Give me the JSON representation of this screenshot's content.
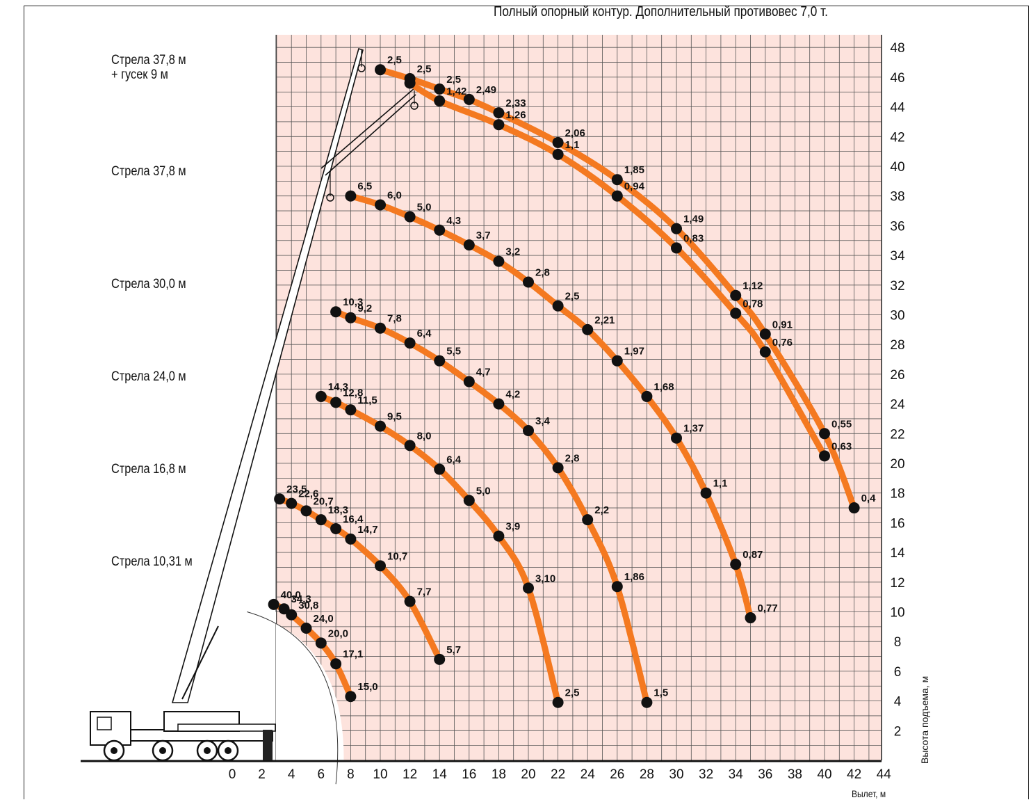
{
  "title": "Полный опорный контур. Дополнительный противовес 7,0 т.",
  "chart_data": {
    "type": "line",
    "title": "Полный опорный контур. Дополнительный противовес 7,0 т.",
    "xlabel": "Вылет, м",
    "ylabel": "Высота подъема, м",
    "xlim": [
      0,
      44
    ],
    "ylim": [
      0,
      48
    ],
    "x_ticks": [
      "0",
      "2",
      "4",
      "6",
      "8",
      "10",
      "12",
      "14",
      "16",
      "18",
      "20",
      "22",
      "24",
      "26",
      "28",
      "30",
      "32",
      "34",
      "36",
      "38",
      "40",
      "42",
      "44"
    ],
    "y_ticks": [
      "2",
      "4",
      "6",
      "8",
      "10",
      "12",
      "14",
      "16",
      "18",
      "20",
      "22",
      "24",
      "26",
      "28",
      "30",
      "32",
      "34",
      "36",
      "38",
      "40",
      "42",
      "44",
      "46",
      "48"
    ],
    "grid": true,
    "y_axis_position": "right",
    "colors": {
      "curve": "#f47920",
      "point": "#111111",
      "grid": "#555555",
      "background": "#fde3dd"
    },
    "boom_labels": [
      "Стрела 37,8 м\n+ гусек 9 м",
      "Стрела 37,8 м",
      "Стрела 30,0 м",
      "Стрела 24,0 м",
      "Стрела 16,8 м",
      "Стрела 10,31 м"
    ],
    "series": [
      {
        "points": [
          {
            "x": 2.8,
            "y": 10.5,
            "label": "40,0"
          },
          {
            "x": 3.5,
            "y": 10.2,
            "label": "34,3"
          },
          {
            "x": 4.0,
            "y": 9.8,
            "label": "30,8"
          },
          {
            "x": 5.0,
            "y": 8.9,
            "label": "24,0"
          },
          {
            "x": 6.0,
            "y": 7.9,
            "label": "20,0"
          },
          {
            "x": 7.0,
            "y": 6.5,
            "label": "17,1"
          },
          {
            "x": 8.0,
            "y": 4.3,
            "label": "15,0"
          }
        ]
      },
      {
        "points": [
          {
            "x": 3.2,
            "y": 17.6,
            "label": "23,5"
          },
          {
            "x": 4.0,
            "y": 17.3,
            "label": "22,6"
          },
          {
            "x": 5.0,
            "y": 16.8,
            "label": "20,7"
          },
          {
            "x": 6.0,
            "y": 16.2,
            "label": "18,3"
          },
          {
            "x": 7.0,
            "y": 15.6,
            "label": "16,4"
          },
          {
            "x": 8.0,
            "y": 14.9,
            "label": "14,7"
          },
          {
            "x": 10.0,
            "y": 13.1,
            "label": "10,7"
          },
          {
            "x": 12.0,
            "y": 10.7,
            "label": "7,7"
          },
          {
            "x": 14.0,
            "y": 6.8,
            "label": "5,7"
          }
        ]
      },
      {
        "points": [
          {
            "x": 6.0,
            "y": 24.5,
            "label": "14,3"
          },
          {
            "x": 7.0,
            "y": 24.1,
            "label": "12,8"
          },
          {
            "x": 8.0,
            "y": 23.6,
            "label": "11,5"
          },
          {
            "x": 10.0,
            "y": 22.5,
            "label": "9,5"
          },
          {
            "x": 12.0,
            "y": 21.2,
            "label": "8,0"
          },
          {
            "x": 14.0,
            "y": 19.6,
            "label": "6,4"
          },
          {
            "x": 16.0,
            "y": 17.5,
            "label": "5,0"
          },
          {
            "x": 18.0,
            "y": 15.1,
            "label": "3,9"
          },
          {
            "x": 20.0,
            "y": 11.6,
            "label": "3,10"
          },
          {
            "x": 22.0,
            "y": 3.9,
            "label": "2,5"
          }
        ]
      },
      {
        "points": [
          {
            "x": 7.0,
            "y": 30.2,
            "label": "10,3"
          },
          {
            "x": 8.0,
            "y": 29.8,
            "label": "9,2"
          },
          {
            "x": 10.0,
            "y": 29.1,
            "label": "7,8"
          },
          {
            "x": 12.0,
            "y": 28.1,
            "label": "6,4"
          },
          {
            "x": 14.0,
            "y": 26.9,
            "label": "5,5"
          },
          {
            "x": 16.0,
            "y": 25.5,
            "label": "4,7"
          },
          {
            "x": 18.0,
            "y": 24.0,
            "label": "4,2"
          },
          {
            "x": 20.0,
            "y": 22.2,
            "label": "3,4"
          },
          {
            "x": 22.0,
            "y": 19.7,
            "label": "2,8"
          },
          {
            "x": 24.0,
            "y": 16.2,
            "label": "2,2"
          },
          {
            "x": 26.0,
            "y": 11.7,
            "label": "1,86"
          },
          {
            "x": 28.0,
            "y": 3.9,
            "label": "1,5"
          }
        ]
      },
      {
        "points": [
          {
            "x": 8.0,
            "y": 38.0,
            "label": "6,5"
          },
          {
            "x": 10.0,
            "y": 37.4,
            "label": "6,0"
          },
          {
            "x": 12.0,
            "y": 36.6,
            "label": "5,0"
          },
          {
            "x": 14.0,
            "y": 35.7,
            "label": "4,3"
          },
          {
            "x": 16.0,
            "y": 34.7,
            "label": "3,7"
          },
          {
            "x": 18.0,
            "y": 33.6,
            "label": "3,2"
          },
          {
            "x": 20.0,
            "y": 32.2,
            "label": "2,8"
          },
          {
            "x": 22.0,
            "y": 30.6,
            "label": "2,5"
          },
          {
            "x": 24.0,
            "y": 29.0,
            "label": "2,21"
          },
          {
            "x": 26.0,
            "y": 26.9,
            "label": "1,97"
          },
          {
            "x": 28.0,
            "y": 24.5,
            "label": "1,68"
          },
          {
            "x": 30.0,
            "y": 21.7,
            "label": "1,37"
          },
          {
            "x": 32.0,
            "y": 18.0,
            "label": "1,1"
          },
          {
            "x": 34.0,
            "y": 13.2,
            "label": "0,87"
          },
          {
            "x": 35.0,
            "y": 9.6,
            "label": "0,77"
          }
        ]
      },
      {
        "points": [
          {
            "x": 10.0,
            "y": 46.5,
            "label": "2,5"
          },
          {
            "x": 12.0,
            "y": 45.9,
            "label": "2,5"
          },
          {
            "x": 14.0,
            "y": 45.2,
            "label": "2,5"
          },
          {
            "x": 16.0,
            "y": 44.5,
            "label": "2,49"
          },
          {
            "x": 18.0,
            "y": 43.6,
            "label": "2,33"
          },
          {
            "x": 22.0,
            "y": 41.6,
            "label": "2,06"
          },
          {
            "x": 26.0,
            "y": 39.1,
            "label": "1,85"
          },
          {
            "x": 30.0,
            "y": 35.8,
            "label": "1,49"
          },
          {
            "x": 34.0,
            "y": 31.3,
            "label": "1,12"
          },
          {
            "x": 36.0,
            "y": 28.7,
            "label": "0,91"
          },
          {
            "x": 40.0,
            "y": 22.0,
            "label": "0,55"
          },
          {
            "x": 42.0,
            "y": 17.0,
            "label": "0,4"
          }
        ]
      },
      {
        "points": [
          {
            "x": 12.0,
            "y": 45.6,
            "label": ""
          },
          {
            "x": 14.0,
            "y": 44.4,
            "label": "1,42"
          },
          {
            "x": 18.0,
            "y": 42.8,
            "label": "1,26"
          },
          {
            "x": 22.0,
            "y": 40.8,
            "label": "1,1"
          },
          {
            "x": 26.0,
            "y": 38.0,
            "label": "0,94"
          },
          {
            "x": 30.0,
            "y": 34.5,
            "label": "0,83"
          },
          {
            "x": 34.0,
            "y": 30.1,
            "label": "0,78"
          },
          {
            "x": 36.0,
            "y": 27.5,
            "label": "0,76"
          },
          {
            "x": 40.0,
            "y": 20.5,
            "label": "0,63"
          }
        ]
      }
    ]
  }
}
